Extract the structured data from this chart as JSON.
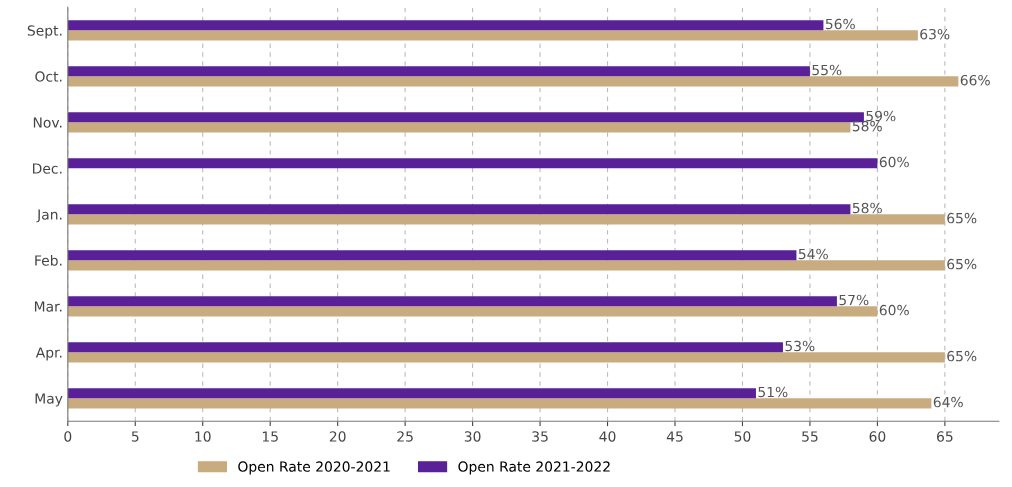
{
  "chart_data": {
    "type": "bar",
    "orientation": "horizontal",
    "categories": [
      "Sept.",
      "Oct.",
      "Nov.",
      "Dec.",
      "Jan.",
      "Feb.",
      "Mar.",
      "Apr.",
      "May"
    ],
    "series": [
      {
        "name": "Open Rate 2020-2021",
        "color": "#c8ab7e",
        "values": [
          63,
          66,
          58,
          null,
          65,
          65,
          60,
          65,
          64
        ],
        "value_labels": [
          "63%",
          "66%",
          "58%",
          null,
          "65%",
          "65%",
          "60%",
          "65%",
          "64%"
        ]
      },
      {
        "name": "Open Rate 2021-2022",
        "color": "#5a2098",
        "values": [
          56,
          55,
          59,
          60,
          58,
          54,
          57,
          53,
          51
        ],
        "value_labels": [
          "56%",
          "55%",
          "59%",
          "60%",
          "58%",
          "54%",
          "57%",
          "53%",
          "51%"
        ]
      }
    ],
    "xlim": [
      0,
      69
    ],
    "xticks": [
      0,
      5,
      10,
      15,
      20,
      25,
      30,
      35,
      40,
      45,
      50,
      55,
      60,
      65
    ],
    "grid": "x",
    "legend": "bottom"
  }
}
